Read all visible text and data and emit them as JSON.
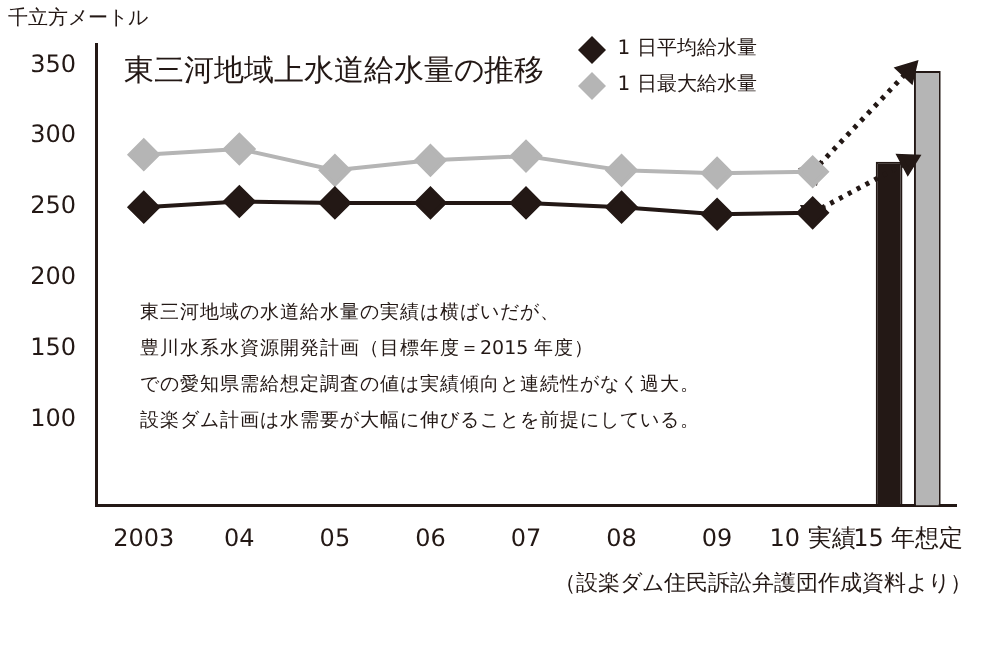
{
  "chart_data": {
    "type": "line",
    "title": "東三河地域上水道給水量の推移",
    "ylabel": "千立方メートル",
    "categories": [
      "2003",
      "04",
      "05",
      "06",
      "07",
      "08",
      "09",
      "10 実績",
      "15 年想定"
    ],
    "series": [
      {
        "name": "1 日平均給水量",
        "color": "#231815",
        "values": [
          250,
          254,
          253,
          253,
          253,
          250,
          245,
          246,
          null
        ]
      },
      {
        "name": "1 日最大給水量",
        "color": "#b5b5b5",
        "values": [
          287,
          291,
          276,
          283,
          286,
          276,
          274,
          275,
          null
        ]
      },
      {
        "color": "#231815",
        "line_style": "dotted",
        "marker": "triangle",
        "values": [
          null,
          null,
          null,
          null,
          null,
          null,
          null,
          246,
          282
        ]
      },
      {
        "color": "#231815",
        "line_style": "dotted",
        "marker": "triangle",
        "values": [
          null,
          null,
          null,
          null,
          null,
          null,
          null,
          275,
          346
        ]
      },
      {
        "type": "bar",
        "color": "#231815",
        "values": [
          null,
          null,
          null,
          null,
          null,
          null,
          null,
          null,
          282
        ]
      },
      {
        "type": "bar",
        "color": "#b5b5b5",
        "values": [
          null,
          null,
          null,
          null,
          null,
          null,
          null,
          null,
          346
        ]
      }
    ],
    "ylim": [
      40,
      365
    ],
    "yticks": [
      100,
      150,
      200,
      250,
      300,
      350
    ],
    "grid": false,
    "legend": "top right",
    "marker": "diamond",
    "line_style": "solid",
    "annotations": [
      "東三河地域の水道給水量の実績は横ばいだが、",
      "豊川水系水資源開発計画（目標年度＝2015 年度）",
      "での愛知県需給想定調査の値は実績傾向と連続性がなく過大。",
      "設楽ダム計画は水需要が大幅に伸びることを前提にしている。",
      "（設楽ダム住民訴訟弁護団作成資料より）"
    ]
  }
}
